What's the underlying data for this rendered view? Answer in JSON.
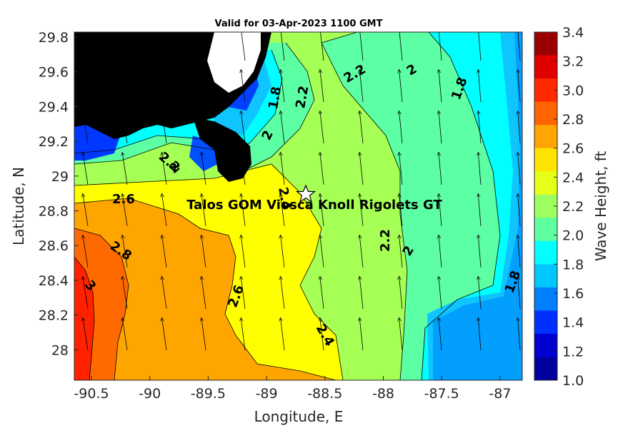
{
  "title": "Valid for 03-Apr-2023 1100 GMT",
  "x_axis": {
    "label": "Longitude, E",
    "ticks": [
      "-90.5",
      "-90",
      "-89.5",
      "-89",
      "-88.5",
      "-88",
      "-87.5",
      "-87"
    ]
  },
  "y_axis": {
    "label": "Latitude, N",
    "ticks": [
      "29.8",
      "29.6",
      "29.4",
      "29.2",
      "29",
      "28.8",
      "28.6",
      "28.4",
      "28.2",
      "28"
    ]
  },
  "colorbar": {
    "label": "Wave Height, ft",
    "ticks": [
      "3.4",
      "3.2",
      "3.0",
      "2.8",
      "2.6",
      "2.4",
      "2.2",
      "2.0",
      "1.8",
      "1.6",
      "1.4",
      "1.2",
      "1.0"
    ],
    "colors": [
      "#9b0000",
      "#e00000",
      "#ff2a00",
      "#ff6400",
      "#ffa400",
      "#ffe400",
      "#e6ff19",
      "#9cff5f",
      "#5fffa0",
      "#00ffff",
      "#00c8ff",
      "#0080ff",
      "#0030ff",
      "#0000d0",
      "#00009f"
    ]
  },
  "contour_labels": [
    "2.6",
    "2.8",
    "3",
    "2.6",
    "2.4",
    "2.2",
    "2.2",
    "2",
    "1.8",
    "2",
    "2.2",
    "1.8",
    "2",
    "2.2",
    "2",
    "2.4",
    "1.8"
  ],
  "station": {
    "name": "Talos GOM Viosca Knoll Rigolets GT",
    "marker": "star-icon"
  }
}
